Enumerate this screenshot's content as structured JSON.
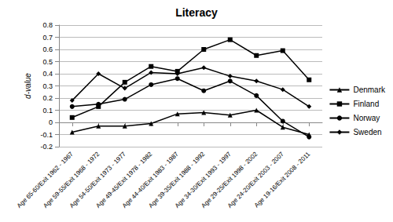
{
  "chart_data": {
    "type": "line",
    "title": "Literacy",
    "y_label": "d-value",
    "categories": [
      "Age 65-60/Exit 1962 - 1967",
      "Age 59-55/Exit 1968 - 1972",
      "Age 54-50/Exit 1973 - 1977",
      "Age 49-45/Exit 1978 - 1982",
      "Age 44-40/Exit 1983 - 1987",
      "Age 39-35/Exit 1988 - 1992",
      "Age 34-30/Exit 1993 - 1997",
      "Age 29-25/Exit 1998 - 2002",
      "Age 24-20/Exit 2003 - 2007",
      "Age 19-16/Exit 2008 - 2011"
    ],
    "series": [
      {
        "name": "Denmark",
        "color": "#000000",
        "marker": "triangle",
        "line_style": "solid",
        "values": [
          -0.08,
          -0.03,
          -0.03,
          -0.01,
          0.07,
          0.08,
          0.06,
          0.1,
          -0.04,
          -0.1
        ]
      },
      {
        "name": "Finland",
        "color": "#000000",
        "marker": "square",
        "line_style": "solid",
        "values": [
          0.04,
          0.13,
          0.33,
          0.46,
          0.42,
          0.6,
          0.68,
          0.55,
          0.59,
          0.35
        ]
      },
      {
        "name": "Norway",
        "color": "#000000",
        "marker": "circle",
        "line_style": "solid",
        "values": [
          0.13,
          0.15,
          0.19,
          0.31,
          0.36,
          0.26,
          0.34,
          0.22,
          0.01,
          -0.12
        ]
      },
      {
        "name": "Sweden",
        "color": "#000000",
        "marker": "diamond",
        "line_style": "solid",
        "values": [
          0.18,
          0.4,
          0.28,
          0.41,
          0.4,
          0.45,
          0.38,
          0.34,
          0.27,
          0.13
        ]
      }
    ],
    "ylim": [
      -0.2,
      0.8
    ],
    "yticks": [
      -0.2,
      -0.1,
      0,
      0.1,
      0.2,
      0.3,
      0.4,
      0.5,
      0.6,
      0.7,
      0.8
    ],
    "grid": true,
    "legend": "right"
  }
}
